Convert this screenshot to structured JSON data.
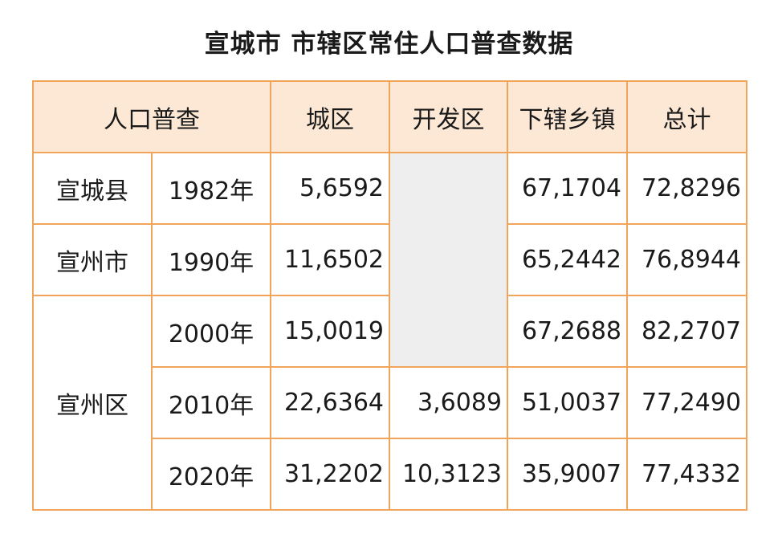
{
  "title": "宣城市 市辖区常住人口普查数据",
  "table": {
    "header": {
      "census": "人口普查",
      "urban": "城区",
      "dev_zone": "开发区",
      "towns": "下辖乡镇",
      "total": "总计"
    },
    "regions": [
      "宣城县",
      "宣州市",
      "宣州区"
    ],
    "rows": [
      {
        "year": "1982年",
        "urban": "5,6592",
        "dev_zone": "",
        "towns": "67,1704",
        "total": "72,8296"
      },
      {
        "year": "1990年",
        "urban": "11,6502",
        "dev_zone": "",
        "towns": "65,2442",
        "total": "76,8944"
      },
      {
        "year": "2000年",
        "urban": "15,0019",
        "dev_zone": "",
        "towns": "67,2688",
        "total": "82,2707"
      },
      {
        "year": "2010年",
        "urban": "22,6364",
        "dev_zone": "3,6089",
        "towns": "51,0037",
        "total": "77,2490"
      },
      {
        "year": "2020年",
        "urban": "31,2202",
        "dev_zone": "10,3123",
        "towns": "35,9007",
        "total": "77,4332"
      }
    ]
  },
  "colors": {
    "border": "#f2a45a",
    "header_bg": "#fde8d5",
    "blank_cell": "#eeeeee"
  }
}
